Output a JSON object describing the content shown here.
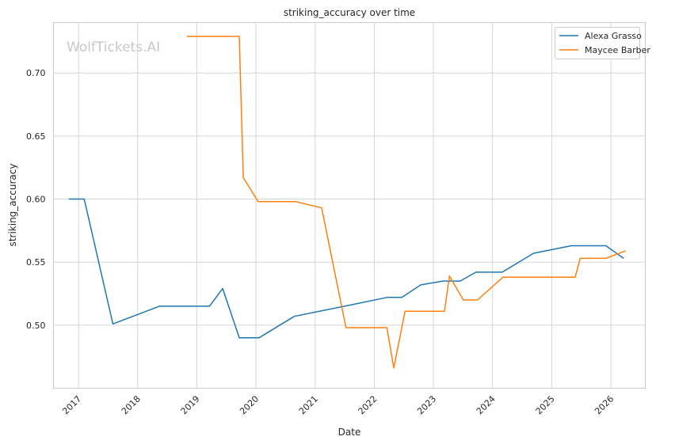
{
  "watermark": "WolfTickets.AI",
  "chart_data": {
    "type": "line",
    "title": "striking_accuracy over time",
    "xlabel": "Date",
    "ylabel": "striking_accuracy",
    "x_ticks": [
      "2017",
      "2018",
      "2019",
      "2020",
      "2021",
      "2022",
      "2023",
      "2024",
      "2025",
      "2026"
    ],
    "y_ticks": [
      "0.50",
      "0.55",
      "0.60",
      "0.65",
      "0.70"
    ],
    "ylim": [
      0.45,
      0.74
    ],
    "xlim": [
      "2016-07-30",
      "2026-08-01"
    ],
    "grid": true,
    "legend_position": "top-right",
    "series": [
      {
        "name": "Alexa Grasso",
        "color": "#1f77b4",
        "points": [
          [
            "2016-11-01",
            0.6
          ],
          [
            "2017-02-05",
            0.6
          ],
          [
            "2017-08-01",
            0.501
          ],
          [
            "2018-05-15",
            0.515
          ],
          [
            "2019-03-20",
            0.515
          ],
          [
            "2019-06-10",
            0.529
          ],
          [
            "2019-09-20",
            0.49
          ],
          [
            "2020-01-20",
            0.49
          ],
          [
            "2020-08-25",
            0.507
          ],
          [
            "2021-07-01",
            0.515
          ],
          [
            "2022-03-20",
            0.522
          ],
          [
            "2022-06-20",
            0.522
          ],
          [
            "2022-10-15",
            0.532
          ],
          [
            "2023-03-01",
            0.535
          ],
          [
            "2023-06-15",
            0.535
          ],
          [
            "2023-09-20",
            0.542
          ],
          [
            "2024-03-01",
            0.542
          ],
          [
            "2024-09-10",
            0.557
          ],
          [
            "2025-05-01",
            0.563
          ],
          [
            "2025-12-01",
            0.563
          ],
          [
            "2026-03-20",
            0.553
          ]
        ]
      },
      {
        "name": "Maycee Barber",
        "color": "#ff7f0e",
        "points": [
          [
            "2018-11-01",
            0.729
          ],
          [
            "2019-09-20",
            0.729
          ],
          [
            "2019-10-15",
            0.617
          ],
          [
            "2020-01-15",
            0.598
          ],
          [
            "2020-09-01",
            0.598
          ],
          [
            "2021-02-10",
            0.593
          ],
          [
            "2021-07-10",
            0.498
          ],
          [
            "2022-03-20",
            0.498
          ],
          [
            "2022-05-01",
            0.466
          ],
          [
            "2022-07-10",
            0.511
          ],
          [
            "2023-03-10",
            0.511
          ],
          [
            "2023-04-10",
            0.539
          ],
          [
            "2023-07-05",
            0.52
          ],
          [
            "2023-09-30",
            0.52
          ],
          [
            "2024-03-05",
            0.538
          ],
          [
            "2025-05-25",
            0.538
          ],
          [
            "2025-06-25",
            0.553
          ],
          [
            "2025-12-01",
            0.553
          ],
          [
            "2026-04-01",
            0.559
          ]
        ]
      }
    ]
  }
}
